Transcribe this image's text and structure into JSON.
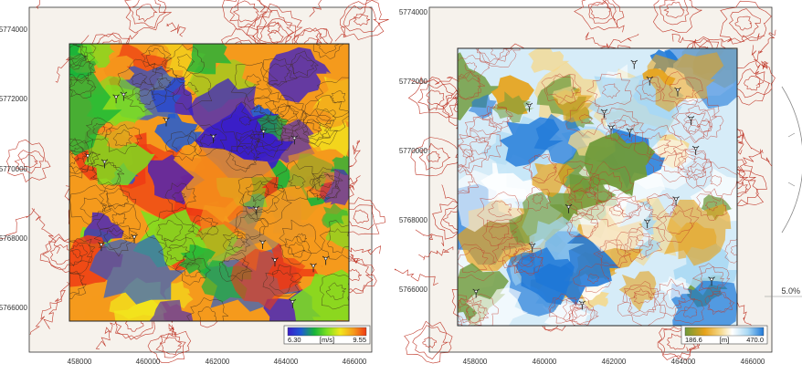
{
  "panels": [
    {
      "id": "wind-speed",
      "x_ticks": [
        "458000",
        "460000",
        "462000",
        "464000",
        "466000"
      ],
      "y_ticks": [
        "5774000",
        "5772000",
        "5770000",
        "5768000",
        "5766000"
      ],
      "legend": {
        "min": "6.30",
        "unit": "[m/s]",
        "max": "9.55",
        "colors": [
          "#3a1ec8",
          "#1e5ad6",
          "#18b43a",
          "#7ce020",
          "#f2e61c",
          "#f59a1c",
          "#ee3a14"
        ]
      },
      "turbine_count": 16
    },
    {
      "id": "elevation",
      "x_ticks": [
        "458000",
        "460000",
        "462000",
        "464000",
        "466000"
      ],
      "y_ticks": [
        "5774000",
        "5772000",
        "5770000",
        "5768000",
        "5766000"
      ],
      "legend": {
        "min": "186.6",
        "unit": "[m]",
        "max": "470.0",
        "colors": [
          "#6f9a3a",
          "#e6a21a",
          "#f5d88a",
          "#ffffff",
          "#a8d8f4",
          "#1e78d8"
        ]
      },
      "turbine_count": 16
    }
  ],
  "side_scale": {
    "label": "5.0%"
  },
  "colors": {
    "contour_outer": "#c0392b",
    "contour_inner": "#3d2a1a",
    "frame": "#333333",
    "background": "#f6f2ec"
  }
}
